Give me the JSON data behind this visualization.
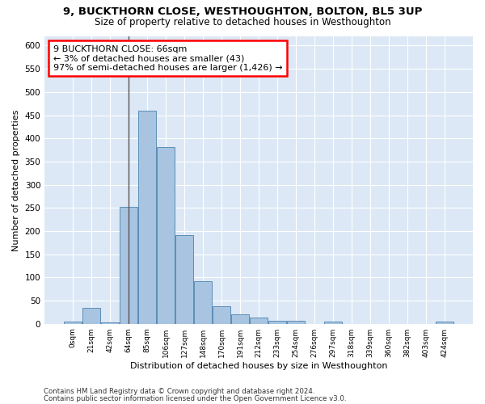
{
  "title1": "9, BUCKTHORN CLOSE, WESTHOUGHTON, BOLTON, BL5 3UP",
  "title2": "Size of property relative to detached houses in Westhoughton",
  "xlabel": "Distribution of detached houses by size in Westhoughton",
  "ylabel": "Number of detached properties",
  "bar_color": "#a8c4e0",
  "bar_edge_color": "#5b8db8",
  "background_color": "#dce8f5",
  "bin_labels": [
    "0sqm",
    "21sqm",
    "42sqm",
    "64sqm",
    "85sqm",
    "106sqm",
    "127sqm",
    "148sqm",
    "170sqm",
    "191sqm",
    "212sqm",
    "233sqm",
    "254sqm",
    "276sqm",
    "297sqm",
    "318sqm",
    "339sqm",
    "360sqm",
    "382sqm",
    "403sqm",
    "424sqm"
  ],
  "bar_heights": [
    5,
    35,
    3,
    253,
    460,
    381,
    191,
    92,
    38,
    20,
    13,
    7,
    6,
    0,
    5,
    0,
    0,
    0,
    0,
    0,
    5
  ],
  "ylim": [
    0,
    620
  ],
  "yticks": [
    0,
    50,
    100,
    150,
    200,
    250,
    300,
    350,
    400,
    450,
    500,
    550,
    600
  ],
  "annotation_text": "9 BUCKTHORN CLOSE: 66sqm\n← 3% of detached houses are smaller (43)\n97% of semi-detached houses are larger (1,426) →",
  "vline_bar_index": 3,
  "footer1": "Contains HM Land Registry data © Crown copyright and database right 2024.",
  "footer2": "Contains public sector information licensed under the Open Government Licence v3.0."
}
